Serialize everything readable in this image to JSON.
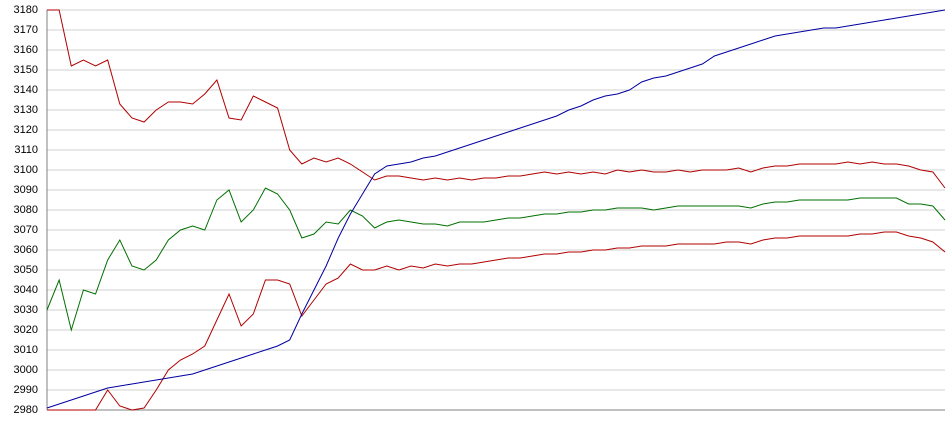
{
  "chart_data": {
    "type": "line",
    "ylim": [
      2980,
      3180
    ],
    "yticks": [
      2980,
      2990,
      3000,
      3010,
      3020,
      3030,
      3040,
      3050,
      3060,
      3070,
      3080,
      3090,
      3100,
      3110,
      3120,
      3130,
      3140,
      3150,
      3160,
      3170,
      3180
    ],
    "grid": true,
    "series": [
      {
        "color": "#b00000",
        "values": [
          3180,
          3180,
          3152,
          3155,
          3152,
          3155,
          3133,
          3126,
          3124,
          3130,
          3134,
          3134,
          3133,
          3138,
          3145,
          3126,
          3125,
          3137,
          3134,
          3131,
          3110,
          3103,
          3106,
          3104,
          3106,
          3103,
          3099,
          3095,
          3097,
          3097,
          3096,
          3095,
          3096,
          3095,
          3096,
          3095,
          3096,
          3096,
          3097,
          3097,
          3098,
          3099,
          3098,
          3099,
          3098,
          3099,
          3098,
          3100,
          3099,
          3100,
          3099,
          3099,
          3100,
          3099,
          3100,
          3100,
          3100,
          3101,
          3099,
          3101,
          3102,
          3102,
          3103,
          3103,
          3103,
          3103,
          3104,
          3103,
          3104,
          3103,
          3103,
          3102,
          3100,
          3099,
          3091
        ]
      },
      {
        "color": "#007000",
        "values": [
          3030,
          3045,
          3020,
          3040,
          3038,
          3055,
          3065,
          3052,
          3050,
          3055,
          3065,
          3070,
          3072,
          3070,
          3085,
          3090,
          3074,
          3080,
          3091,
          3088,
          3080,
          3066,
          3068,
          3074,
          3073,
          3080,
          3077,
          3071,
          3074,
          3075,
          3074,
          3073,
          3073,
          3072,
          3074,
          3074,
          3074,
          3075,
          3076,
          3076,
          3077,
          3078,
          3078,
          3079,
          3079,
          3080,
          3080,
          3081,
          3081,
          3081,
          3080,
          3081,
          3082,
          3082,
          3082,
          3082,
          3082,
          3082,
          3081,
          3083,
          3084,
          3084,
          3085,
          3085,
          3085,
          3085,
          3085,
          3086,
          3086,
          3086,
          3086,
          3083,
          3083,
          3082,
          3075
        ]
      },
      {
        "color": "#b00000",
        "values": [
          2980,
          2980,
          2980,
          2980,
          2980,
          2990,
          2982,
          2980,
          2981,
          2990,
          3000,
          3005,
          3008,
          3012,
          3025,
          3038,
          3022,
          3028,
          3045,
          3045,
          3043,
          3027,
          3035,
          3043,
          3046,
          3053,
          3050,
          3050,
          3052,
          3050,
          3052,
          3051,
          3053,
          3052,
          3053,
          3053,
          3054,
          3055,
          3056,
          3056,
          3057,
          3058,
          3058,
          3059,
          3059,
          3060,
          3060,
          3061,
          3061,
          3062,
          3062,
          3062,
          3063,
          3063,
          3063,
          3063,
          3064,
          3064,
          3063,
          3065,
          3066,
          3066,
          3067,
          3067,
          3067,
          3067,
          3067,
          3068,
          3068,
          3069,
          3069,
          3067,
          3066,
          3064,
          3059
        ]
      },
      {
        "color": "#0000a0",
        "values": [
          2981,
          2983,
          2985,
          2987,
          2989,
          2991,
          2992,
          2993,
          2994,
          2995,
          2996,
          2997,
          2998,
          3000,
          3002,
          3004,
          3006,
          3008,
          3010,
          3012,
          3015,
          3028,
          3040,
          3052,
          3066,
          3078,
          3088,
          3098,
          3102,
          3103,
          3104,
          3106,
          3107,
          3109,
          3111,
          3113,
          3115,
          3117,
          3119,
          3121,
          3123,
          3125,
          3127,
          3130,
          3132,
          3135,
          3137,
          3138,
          3140,
          3144,
          3146,
          3147,
          3149,
          3151,
          3153,
          3157,
          3159,
          3161,
          3163,
          3165,
          3167,
          3168,
          3169,
          3170,
          3171,
          3171,
          3172,
          3173,
          3174,
          3175,
          3176,
          3177,
          3178,
          3179,
          3180
        ]
      }
    ]
  }
}
